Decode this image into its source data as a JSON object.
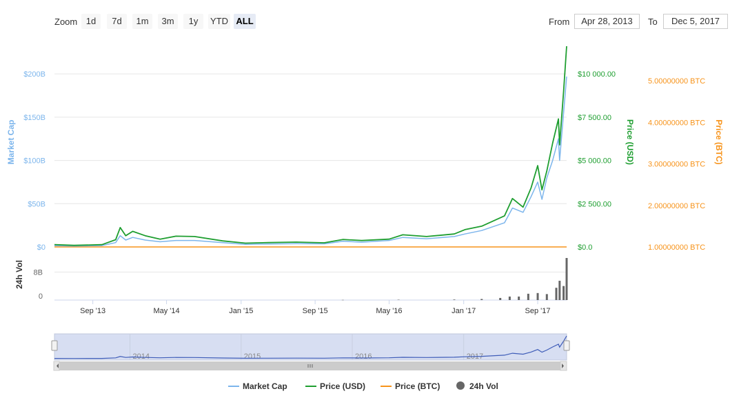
{
  "toolbar": {
    "zoom_label": "Zoom",
    "zoom_buttons": [
      "1d",
      "7d",
      "1m",
      "3m",
      "1y",
      "YTD",
      "ALL"
    ],
    "active_zoom": "ALL",
    "from_label": "From",
    "from_value": "Apr 28, 2013",
    "to_label": "To",
    "to_value": "Dec 5, 2017"
  },
  "colors": {
    "market_cap": "#7cb5ec",
    "price_usd": "#1e9e30",
    "price_btc": "#f7931a",
    "volume": "#666666",
    "navigator_fill": "#d7def2",
    "navigator_line": "#3e5cb8"
  },
  "chart_data": {
    "type": "line",
    "x_range": [
      "2013-04-28",
      "2017-12-05"
    ],
    "x_ticks": [
      "Sep '13",
      "May '14",
      "Jan '15",
      "Sep '15",
      "May '16",
      "Jan '17",
      "Sep '17"
    ],
    "axes": {
      "market_cap": {
        "label": "Market Cap",
        "ticks": [
          "$0",
          "$50B",
          "$100B",
          "$150B",
          "$200B"
        ],
        "range": [
          0,
          200000000000
        ]
      },
      "price_usd": {
        "label": "Price (USD)",
        "ticks": [
          "$0.0",
          "$2 500.00",
          "$5 000.00",
          "$7 500.00",
          "$10 000.00"
        ],
        "range": [
          0,
          10000
        ]
      },
      "price_btc": {
        "label": "Price (BTC)",
        "ticks": [
          "1.00000000 BTC",
          "2.00000000 BTC",
          "3.00000000 BTC",
          "4.00000000 BTC",
          "5.00000000 BTC"
        ],
        "range": [
          1,
          5
        ]
      },
      "volume": {
        "label": "24h Vol",
        "ticks": [
          "0",
          "8B"
        ],
        "range": [
          0,
          8000000000
        ]
      }
    },
    "series": [
      {
        "name": "Market Cap",
        "x": [
          "2013-04-28",
          "2013-07-01",
          "2013-10-01",
          "2013-11-15",
          "2013-11-30",
          "2013-12-18",
          "2014-01-10",
          "2014-02-20",
          "2014-04-10",
          "2014-06-01",
          "2014-08-01",
          "2014-11-01",
          "2015-01-15",
          "2015-04-01",
          "2015-07-01",
          "2015-10-01",
          "2015-12-01",
          "2016-02-01",
          "2016-05-01",
          "2016-06-15",
          "2016-09-01",
          "2016-12-01",
          "2017-01-05",
          "2017-03-01",
          "2017-05-15",
          "2017-06-10",
          "2017-07-15",
          "2017-08-10",
          "2017-09-01",
          "2017-09-15",
          "2017-10-01",
          "2017-10-20",
          "2017-11-08",
          "2017-11-12",
          "2017-11-25",
          "2017-12-05"
        ],
        "values": [
          1500000000.0,
          1000000000.0,
          1600000000.0,
          5000000000.0,
          13000000000.0,
          8000000000.0,
          11000000000.0,
          8000000000.0,
          6000000000.0,
          7500000000.0,
          7500000000.0,
          5000000000.0,
          3000000000.0,
          3400000000.0,
          3800000000.0,
          3600000000.0,
          6500000000.0,
          5500000000.0,
          7500000000.0,
          11000000000.0,
          9500000000.0,
          12000000000.0,
          15000000000.0,
          19000000000.0,
          28000000000.0,
          45000000000.0,
          40000000000.0,
          58000000000.0,
          75000000000.0,
          55000000000.0,
          80000000000.0,
          100000000000.0,
          125000000000.0,
          100000000000.0,
          155000000000.0,
          197000000000.0
        ]
      },
      {
        "name": "Price (USD)",
        "x": [
          "2013-04-28",
          "2013-07-01",
          "2013-10-01",
          "2013-11-15",
          "2013-11-30",
          "2013-12-18",
          "2014-01-10",
          "2014-02-20",
          "2014-04-10",
          "2014-06-01",
          "2014-08-01",
          "2014-11-01",
          "2015-01-15",
          "2015-04-01",
          "2015-07-01",
          "2015-10-01",
          "2015-12-01",
          "2016-02-01",
          "2016-05-01",
          "2016-06-15",
          "2016-09-01",
          "2016-12-01",
          "2017-01-05",
          "2017-03-01",
          "2017-05-15",
          "2017-06-10",
          "2017-07-15",
          "2017-08-10",
          "2017-09-01",
          "2017-09-15",
          "2017-10-01",
          "2017-10-20",
          "2017-11-08",
          "2017-11-12",
          "2017-11-25",
          "2017-12-05"
        ],
        "values": [
          135,
          90,
          130,
          420,
          1120,
          650,
          900,
          650,
          450,
          620,
          600,
          350,
          220,
          250,
          280,
          240,
          430,
          370,
          450,
          700,
          600,
          750,
          1000,
          1200,
          1800,
          2800,
          2300,
          3400,
          4700,
          3300,
          4400,
          6000,
          7400,
          5900,
          9000,
          11600
        ]
      },
      {
        "name": "Price (BTC)",
        "x": [
          "2013-04-28",
          "2017-12-05"
        ],
        "values": [
          1,
          1
        ]
      },
      {
        "name": "24h Vol",
        "type": "bar",
        "x": [
          "2015-12-01",
          "2016-06-01",
          "2016-12-01",
          "2017-03-01",
          "2017-05-01",
          "2017-06-01",
          "2017-07-01",
          "2017-08-01",
          "2017-09-01",
          "2017-10-01",
          "2017-11-01",
          "2017-11-12",
          "2017-11-25",
          "2017-12-05"
        ],
        "values": [
          50000000.0,
          100000000.0,
          150000000.0,
          300000000.0,
          600000000.0,
          1000000000.0,
          1000000000.0,
          1800000000.0,
          2000000000.0,
          1700000000.0,
          3500000000.0,
          5500000000.0,
          4000000000.0,
          12000000000.0
        ]
      }
    ],
    "navigator": {
      "labels": [
        "2014",
        "2015",
        "2016",
        "2017"
      ]
    },
    "legend": [
      "Market Cap",
      "Price (USD)",
      "Price (BTC)",
      "24h Vol"
    ],
    "legend_position": "bottom-center"
  }
}
